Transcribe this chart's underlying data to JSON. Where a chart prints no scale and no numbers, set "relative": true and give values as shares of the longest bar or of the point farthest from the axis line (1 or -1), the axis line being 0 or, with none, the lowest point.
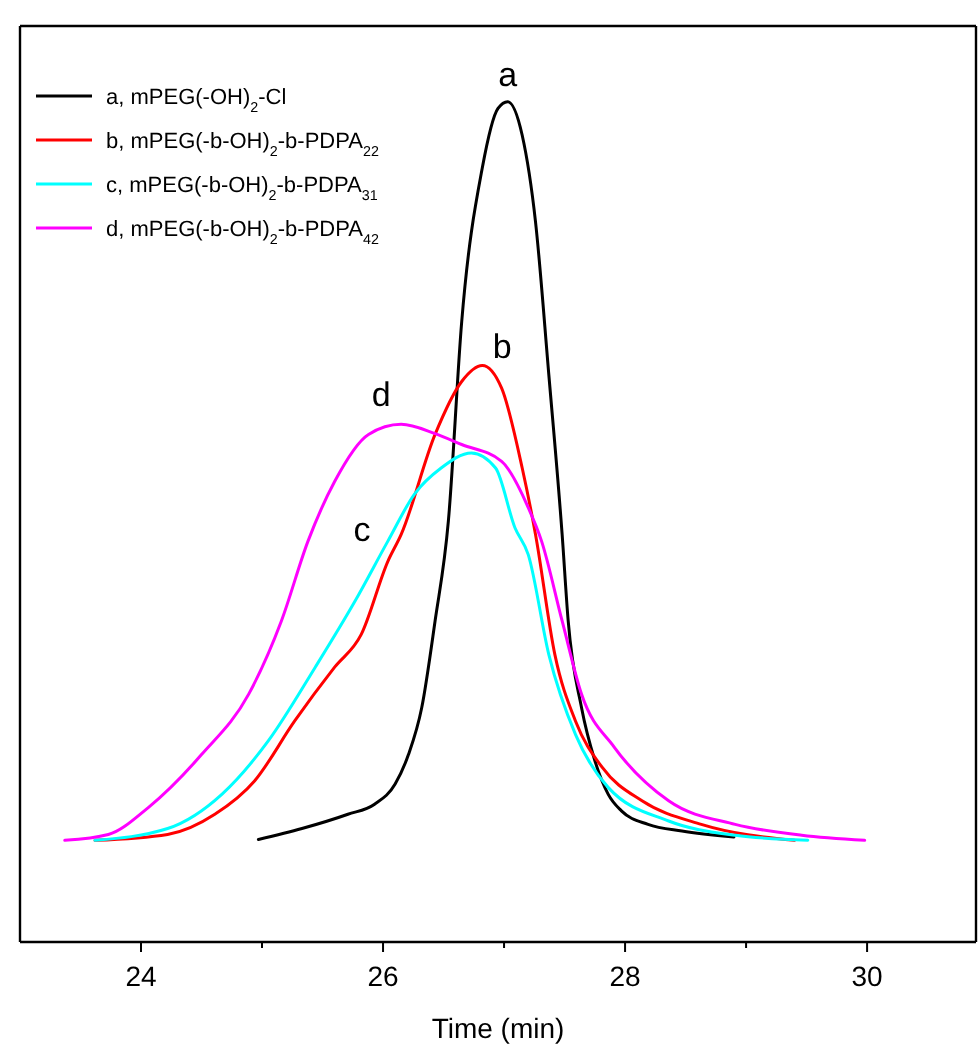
{
  "chart_data": {
    "type": "line",
    "xlabel": "Time (min)",
    "relative": true,
    "xlim": [
      23,
      30.9
    ],
    "xticks": [
      24,
      {
        "value": 25,
        "label": null
      },
      26,
      {
        "value": 27,
        "label": null
      },
      28,
      {
        "value": 29,
        "label": null
      },
      30
    ],
    "legend": "top left",
    "tick_labels": "x",
    "line_style": "solid",
    "marker": "none",
    "series": [
      {
        "name": "a, mPEG(-OH)$_{2}$-Cl",
        "color": "#000000",
        "x": [
          24.97,
          25.33,
          25.71,
          25.93,
          26.1,
          26.21,
          26.32,
          26.43,
          26.54,
          26.65,
          26.82,
          26.95,
          27.03,
          27.15,
          27.26,
          27.37,
          27.48,
          27.53,
          27.64,
          27.75,
          27.86,
          27.97,
          28.19,
          28.47,
          28.9
        ],
        "values": [
          0.122,
          0.135,
          0.152,
          0.164,
          0.188,
          0.223,
          0.279,
          0.382,
          0.501,
          0.738,
          0.921,
          0.992,
          1.0,
          0.96,
          0.857,
          0.675,
          0.485,
          0.382,
          0.279,
          0.216,
          0.176,
          0.156,
          0.14,
          0.132,
          0.125
        ]
      },
      {
        "name": "b, mPEG(-b-OH)$_{2}$-b-PDPA$_{22}$",
        "color": "#ff0000",
        "x": [
          23.62,
          24.22,
          24.61,
          24.94,
          25.27,
          25.6,
          25.82,
          26.04,
          26.15,
          26.43,
          26.65,
          26.82,
          26.98,
          27.15,
          27.26,
          27.42,
          27.59,
          27.81,
          28.14,
          28.63,
          29.4
        ],
        "values": [
          0.121,
          0.128,
          0.152,
          0.192,
          0.263,
          0.327,
          0.366,
          0.453,
          0.485,
          0.604,
          0.667,
          0.686,
          0.659,
          0.564,
          0.485,
          0.342,
          0.263,
          0.208,
          0.168,
          0.14,
          0.121
        ]
      },
      {
        "name": "c, mPEG(-b-OH)$_{2}$-b-PDPA$_{31}$",
        "color": "#00ffff",
        "x": [
          23.62,
          24.22,
          24.67,
          25.05,
          25.44,
          25.77,
          26.04,
          26.26,
          26.48,
          26.73,
          26.93,
          27.09,
          27.2,
          27.37,
          27.59,
          27.86,
          28.36,
          28.91,
          29.51
        ],
        "values": [
          0.121,
          0.135,
          0.176,
          0.239,
          0.327,
          0.406,
          0.477,
          0.533,
          0.564,
          0.582,
          0.564,
          0.493,
          0.461,
          0.342,
          0.247,
          0.184,
          0.144,
          0.127,
          0.121
        ]
      },
      {
        "name": "d, mPEG(-b-OH)$_{2}$-b-PDPA$_{42}$",
        "color": "#ff00ff",
        "x": [
          23.37,
          23.73,
          24.06,
          24.5,
          24.89,
          25.16,
          25.38,
          25.6,
          25.88,
          26.15,
          26.43,
          26.65,
          26.98,
          27.2,
          27.31,
          27.48,
          27.64,
          27.91,
          28.36,
          28.91,
          29.46,
          29.98
        ],
        "values": [
          0.121,
          0.128,
          0.16,
          0.223,
          0.295,
          0.382,
          0.477,
          0.548,
          0.604,
          0.616,
          0.605,
          0.592,
          0.572,
          0.517,
          0.477,
          0.382,
          0.295,
          0.232,
          0.168,
          0.14,
          0.127,
          0.121
        ]
      }
    ],
    "annotations": [
      {
        "text": "a",
        "x": 27.03,
        "y": 1.0
      },
      {
        "text": "b",
        "x": 26.82,
        "y": 0.686
      },
      {
        "text": "c",
        "x": 26.04,
        "y": 0.477
      },
      {
        "text": "d",
        "x": 26.15,
        "y": 0.616
      }
    ]
  }
}
